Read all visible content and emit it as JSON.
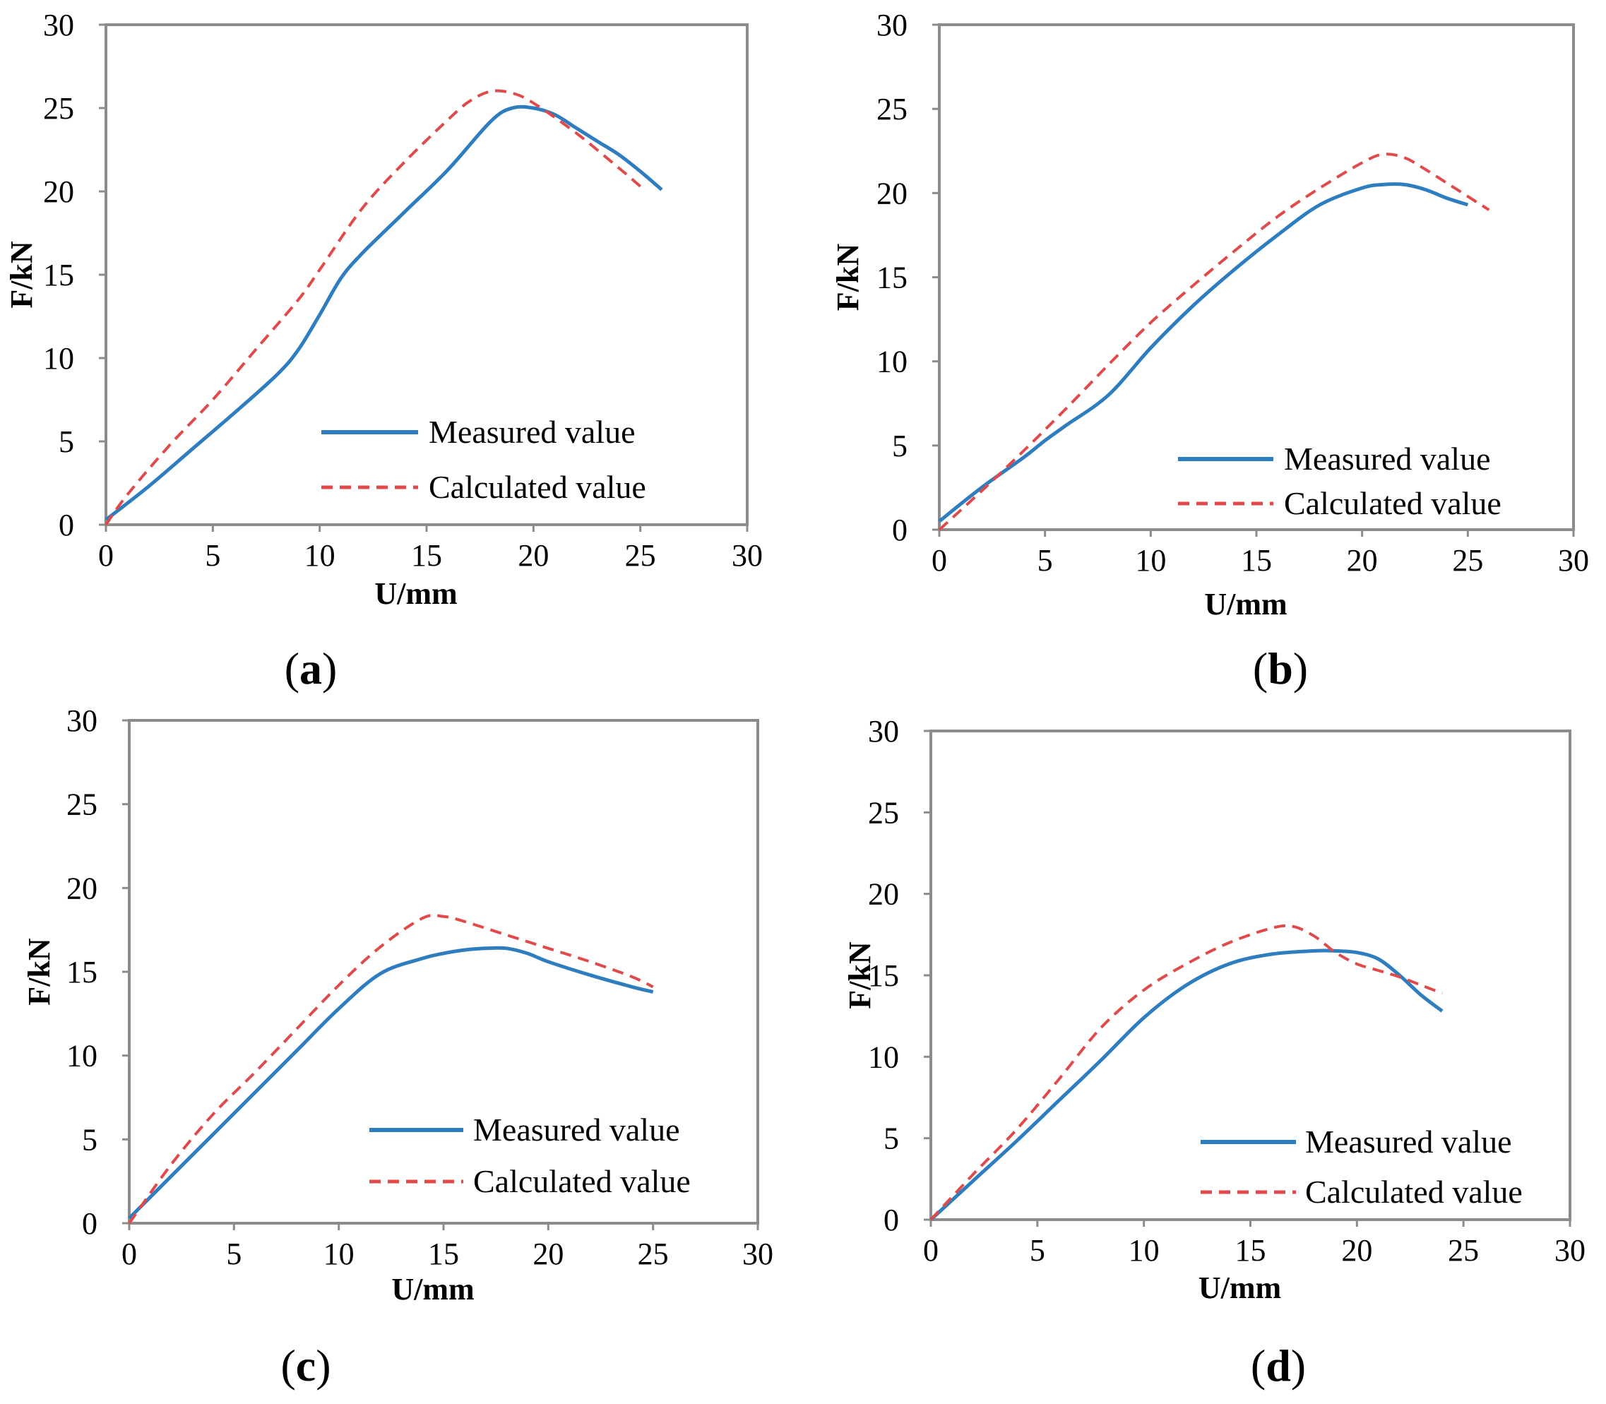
{
  "colors": {
    "measured": "#2e7dbf",
    "calculated": "#e04a4a",
    "axis": "#8c8c8c"
  },
  "chart_data": [
    {
      "type": "line",
      "panel_label": "a",
      "xlabel": "U/mm",
      "ylabel": "F/kN",
      "xlim": [
        0,
        30
      ],
      "ylim": [
        0,
        30
      ],
      "xticks": [
        "0",
        "5",
        "10",
        "15",
        "20",
        "25",
        "30"
      ],
      "yticks": [
        "0",
        "5",
        "10",
        "15",
        "20",
        "25",
        "30"
      ],
      "legend": {
        "position": "bottom-right"
      },
      "series": [
        {
          "name": "Measured value",
          "style": "solid",
          "x": [
            0,
            2,
            4,
            6,
            8,
            9,
            10,
            11,
            12,
            14,
            16,
            18,
            19,
            20,
            21,
            22,
            23,
            24,
            25,
            26
          ],
          "y": [
            0.3,
            2.3,
            4.5,
            6.7,
            9.0,
            10.5,
            12.6,
            14.8,
            16.3,
            18.8,
            21.3,
            24.2,
            25.0,
            25.0,
            24.6,
            23.8,
            23.0,
            22.2,
            21.2,
            20.1
          ]
        },
        {
          "name": "Calculated value",
          "style": "dashed",
          "x": [
            0,
            1,
            3,
            5,
            7,
            9,
            10,
            12,
            14,
            16,
            17,
            18,
            19,
            20,
            22,
            24,
            25
          ],
          "y": [
            0,
            1.8,
            4.8,
            7.5,
            10.5,
            13.5,
            15.3,
            19.0,
            21.8,
            24.3,
            25.4,
            26.0,
            25.9,
            25.3,
            23.5,
            21.4,
            20.3
          ]
        }
      ]
    },
    {
      "type": "line",
      "panel_label": "b",
      "xlabel": "U/mm",
      "ylabel": "F/kN",
      "xlim": [
        0,
        30
      ],
      "ylim": [
        0,
        30
      ],
      "xticks": [
        "0",
        "5",
        "10",
        "15",
        "20",
        "25",
        "30"
      ],
      "yticks": [
        "0",
        "5",
        "10",
        "15",
        "20",
        "25",
        "30"
      ],
      "legend": {
        "position": "bottom-right"
      },
      "series": [
        {
          "name": "Measured value",
          "style": "solid",
          "x": [
            0,
            2,
            4,
            5,
            6,
            8,
            10,
            12,
            14,
            16,
            18,
            20,
            21,
            22,
            23,
            24,
            25
          ],
          "y": [
            0.5,
            2.5,
            4.3,
            5.3,
            6.2,
            8.0,
            10.8,
            13.3,
            15.5,
            17.5,
            19.3,
            20.3,
            20.5,
            20.5,
            20.2,
            19.7,
            19.3
          ]
        },
        {
          "name": "Calculated value",
          "style": "dashed",
          "x": [
            0,
            2,
            4,
            6,
            8,
            10,
            12,
            14,
            16,
            18,
            20,
            21,
            22,
            23,
            24,
            25,
            26
          ],
          "y": [
            0,
            2.3,
            4.7,
            7.2,
            9.8,
            12.3,
            14.5,
            16.6,
            18.6,
            20.3,
            21.8,
            22.3,
            22.1,
            21.4,
            20.6,
            19.8,
            19.0
          ]
        }
      ]
    },
    {
      "type": "line",
      "panel_label": "c",
      "xlabel": "U/mm",
      "ylabel": "F/kN",
      "xlim": [
        0,
        30
      ],
      "ylim": [
        0,
        30
      ],
      "xticks": [
        "0",
        "5",
        "10",
        "15",
        "20",
        "25",
        "30"
      ],
      "yticks": [
        "0",
        "5",
        "10",
        "15",
        "20",
        "25",
        "30"
      ],
      "legend": {
        "position": "bottom-right"
      },
      "series": [
        {
          "name": "Measured value",
          "style": "solid",
          "x": [
            0,
            2,
            4,
            6,
            8,
            10,
            12,
            14,
            15,
            16,
            17,
            18,
            19,
            20,
            22,
            24,
            25
          ],
          "y": [
            0.3,
            2.8,
            5.3,
            7.8,
            10.3,
            12.8,
            14.9,
            15.8,
            16.1,
            16.3,
            16.4,
            16.4,
            16.1,
            15.6,
            14.8,
            14.1,
            13.8
          ]
        },
        {
          "name": "Calculated value",
          "style": "dashed",
          "x": [
            0,
            2,
            4,
            6,
            8,
            10,
            12,
            14,
            15,
            16,
            18,
            20,
            22,
            24,
            25
          ],
          "y": [
            0,
            3.5,
            6.5,
            9.0,
            11.6,
            14.2,
            16.5,
            18.2,
            18.3,
            18.0,
            17.2,
            16.4,
            15.6,
            14.7,
            14.1
          ]
        }
      ]
    },
    {
      "type": "line",
      "panel_label": "d",
      "xlabel": "U/mm",
      "ylabel": "F/kN",
      "xlim": [
        0,
        30
      ],
      "ylim": [
        0,
        30
      ],
      "xticks": [
        "0",
        "5",
        "10",
        "15",
        "20",
        "25",
        "30"
      ],
      "yticks": [
        "0",
        "5",
        "10",
        "15",
        "20",
        "25",
        "30"
      ],
      "legend": {
        "position": "bottom-right"
      },
      "series": [
        {
          "name": "Measured value",
          "style": "solid",
          "x": [
            0,
            2,
            4,
            6,
            8,
            10,
            12,
            14,
            16,
            18,
            19,
            20,
            21,
            22,
            23,
            24
          ],
          "y": [
            0,
            2.4,
            4.8,
            7.3,
            9.8,
            12.4,
            14.4,
            15.7,
            16.3,
            16.5,
            16.5,
            16.4,
            16.0,
            15.0,
            13.8,
            12.8
          ]
        },
        {
          "name": "Calculated value",
          "style": "dashed",
          "x": [
            0,
            2,
            4,
            6,
            8,
            10,
            12,
            14,
            16,
            17,
            18,
            19,
            20,
            21,
            22,
            23,
            24
          ],
          "y": [
            0,
            2.8,
            5.5,
            8.6,
            11.8,
            14.1,
            15.7,
            17.0,
            17.9,
            18.0,
            17.4,
            16.4,
            15.7,
            15.3,
            14.9,
            14.4,
            13.9
          ]
        }
      ]
    }
  ]
}
